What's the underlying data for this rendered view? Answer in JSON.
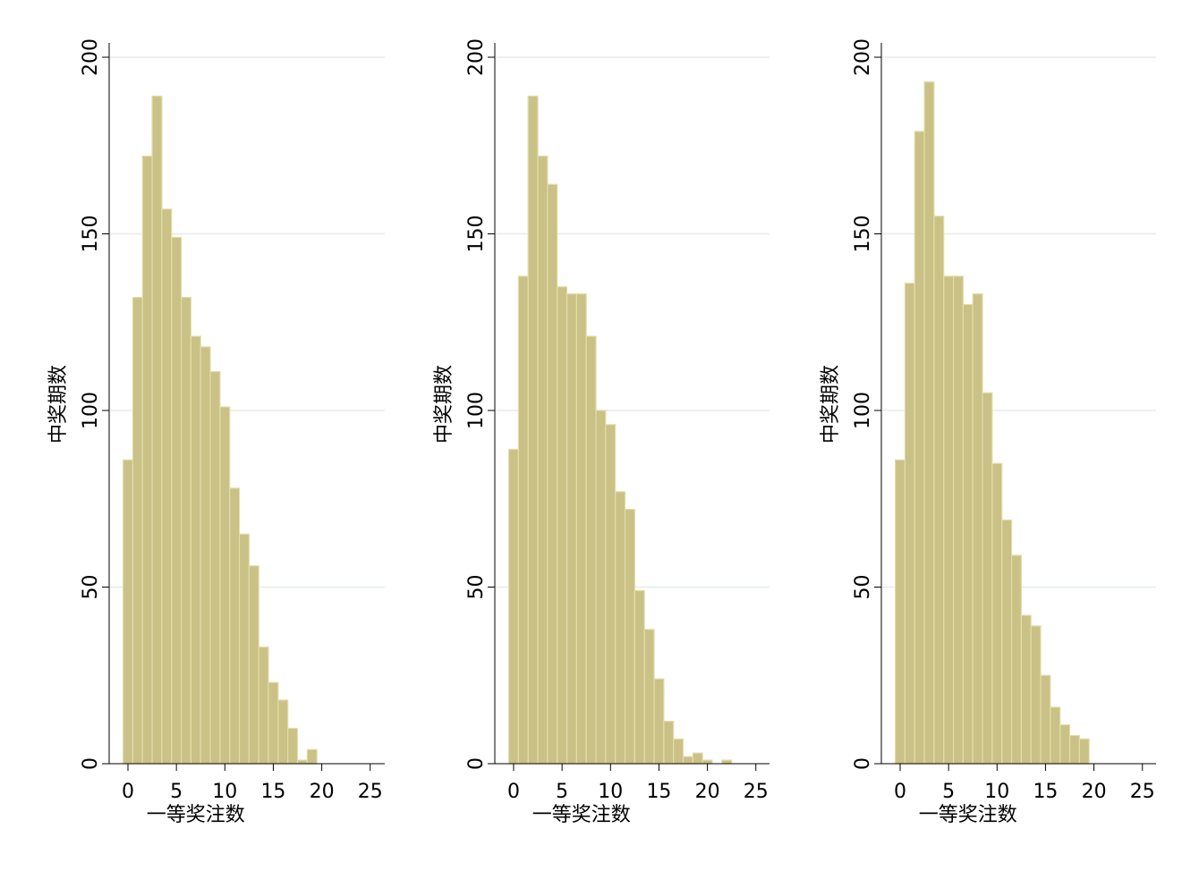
{
  "colors": {
    "bar_fill": "#c9c185",
    "bar_stroke": "#e3dcaa",
    "grid": "#e6ece9",
    "axis": "#000000"
  },
  "chart_data": [
    {
      "type": "bar",
      "xlabel": "一等奖注数",
      "ylabel": "中奖期数",
      "xlim": [
        -1,
        26.5
      ],
      "ylim": [
        0,
        200
      ],
      "x_ticks": [
        "0",
        "5",
        "10",
        "15",
        "20",
        "25"
      ],
      "y_ticks": [
        "0",
        "50",
        "100",
        "150",
        "200"
      ],
      "grid": true,
      "bin_width": 1,
      "x": [
        0,
        1,
        2,
        3,
        4,
        5,
        6,
        7,
        8,
        9,
        10,
        11,
        12,
        13,
        14,
        15,
        16,
        17,
        18,
        19
      ],
      "values": [
        86,
        132,
        172,
        189,
        157,
        149,
        132,
        121,
        118,
        111,
        101,
        78,
        65,
        56,
        33,
        23,
        18,
        10,
        1,
        4
      ]
    },
    {
      "type": "bar",
      "xlabel": "一等奖注数",
      "ylabel": "中奖期数",
      "xlim": [
        -1,
        26.5
      ],
      "ylim": [
        0,
        200
      ],
      "x_ticks": [
        "0",
        "5",
        "10",
        "15",
        "20",
        "25"
      ],
      "y_ticks": [
        "0",
        "50",
        "100",
        "150",
        "200"
      ],
      "grid": true,
      "bin_width": 1,
      "x": [
        0,
        1,
        2,
        3,
        4,
        5,
        6,
        7,
        8,
        9,
        10,
        11,
        12,
        13,
        14,
        15,
        16,
        17,
        18,
        19,
        20,
        21,
        22
      ],
      "values": [
        89,
        138,
        189,
        172,
        164,
        135,
        133,
        133,
        121,
        100,
        96,
        77,
        72,
        49,
        38,
        24,
        12,
        7,
        2,
        3,
        1,
        0,
        1
      ]
    },
    {
      "type": "bar",
      "xlabel": "一等奖注数",
      "ylabel": "中奖期数",
      "xlim": [
        -1,
        26.5
      ],
      "ylim": [
        0,
        200
      ],
      "x_ticks": [
        "0",
        "5",
        "10",
        "15",
        "20",
        "25"
      ],
      "y_ticks": [
        "0",
        "50",
        "100",
        "150",
        "200"
      ],
      "grid": true,
      "bin_width": 1,
      "x": [
        0,
        1,
        2,
        3,
        4,
        5,
        6,
        7,
        8,
        9,
        10,
        11,
        12,
        13,
        14,
        15,
        16,
        17,
        18,
        19,
        20
      ],
      "values": [
        86,
        136,
        179,
        193,
        155,
        138,
        138,
        130,
        133,
        105,
        85,
        69,
        59,
        42,
        39,
        25,
        16,
        11,
        8,
        7,
        0
      ]
    }
  ]
}
